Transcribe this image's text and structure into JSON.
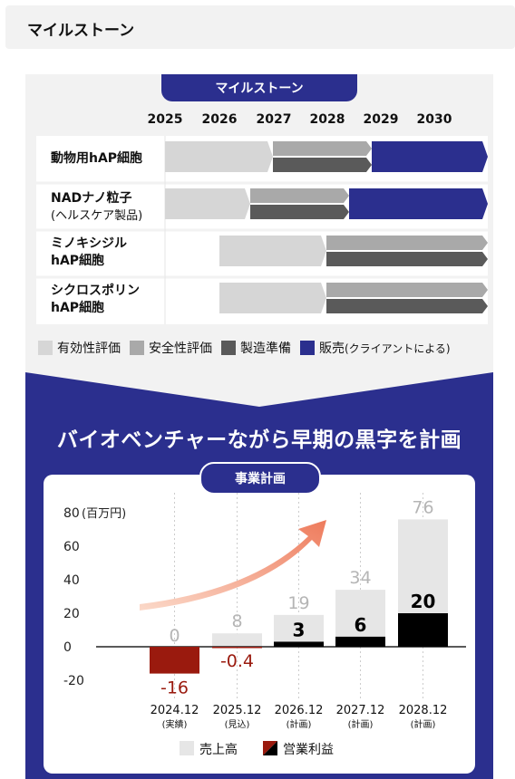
{
  "header": {
    "title": "マイルストーン"
  },
  "milestone": {
    "tab_label": "マイルストーン",
    "years": [
      "2025",
      "2026",
      "2027",
      "2028",
      "2029",
      "2030"
    ],
    "rows": [
      {
        "label": "動物用hAP細胞",
        "sub": ""
      },
      {
        "label": "NADナノ粒子",
        "sub": "(ヘルスケア製品)"
      },
      {
        "label": "ミノキシジル",
        "sub": "hAP細胞"
      },
      {
        "label": "シクロスポリン",
        "sub": "hAP細胞"
      }
    ],
    "legend": [
      {
        "label": "有効性評価",
        "color": "#d6d6d6"
      },
      {
        "label": "安全性評価",
        "color": "#a9a9a9"
      },
      {
        "label": "製造準備",
        "color": "#5a5a5a"
      },
      {
        "label": "販売",
        "note": "(クライアントによる)",
        "color": "#2b2f8e"
      }
    ]
  },
  "headline": "バイオベンチャーながら早期の黒字を計画",
  "chart_data": {
    "type": "bar",
    "title": "事業計画",
    "ylabel": "(百万円)",
    "ylim": [
      -20,
      80
    ],
    "yticks": [
      80,
      60,
      40,
      20,
      0,
      -20
    ],
    "categories": [
      "2024.12",
      "2025.12",
      "2026.12",
      "2027.12",
      "2028.12"
    ],
    "category_notes": [
      "(実績)",
      "(見込)",
      "(計画)",
      "(計画)",
      "(計画)"
    ],
    "series": [
      {
        "name": "売上高",
        "values": [
          0,
          8,
          19,
          34,
          76
        ],
        "labels": [
          "0",
          "8",
          "19",
          "34",
          "76"
        ]
      },
      {
        "name": "営業利益",
        "values": [
          -16,
          -0.4,
          3,
          6,
          20
        ],
        "labels": [
          "-16",
          "-0.4",
          "3",
          "6",
          "20"
        ]
      }
    ],
    "ytick_labels": [
      "80",
      "60",
      "40",
      "20",
      "0",
      "-20"
    ],
    "colors": {
      "sales": "#e6e6e6",
      "profit": "#000000",
      "loss": "#9a1a0e"
    },
    "legend_position": "bottom-center"
  }
}
